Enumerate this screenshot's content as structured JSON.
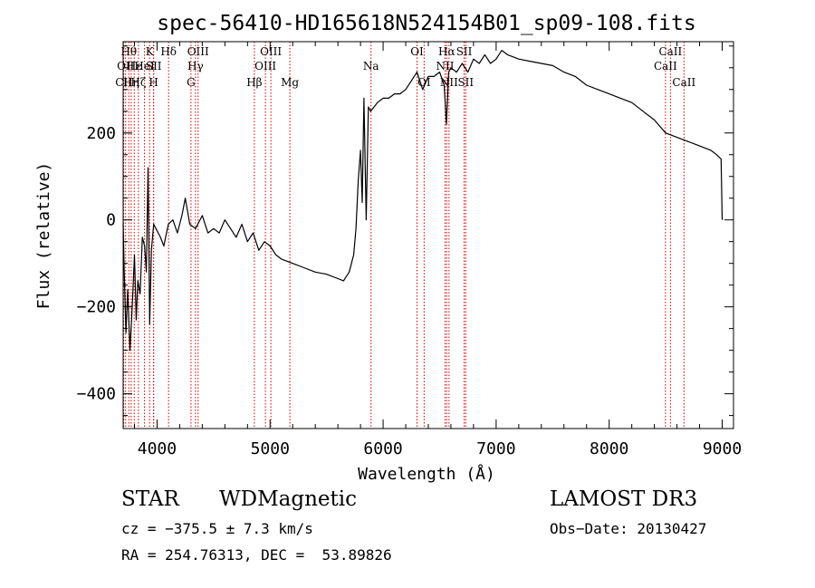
{
  "chart_data": {
    "type": "line",
    "title": "spec-56410-HD165618N524154B01_sp09-108.fits",
    "xlabel": "Wavelength (Å)",
    "ylabel": "Flux (relative)",
    "xlim": [
      3700,
      9100
    ],
    "ylim": [
      -480,
      410
    ],
    "x_ticks": [
      4000,
      5000,
      6000,
      7000,
      8000,
      9000
    ],
    "x_tick_labels": [
      "4000",
      "5000",
      "6000",
      "7000",
      "8000",
      "9000"
    ],
    "x_minor_step": 200,
    "y_ticks": [
      -400,
      -200,
      0,
      200
    ],
    "y_tick_labels": [
      "−400",
      "−200",
      "0",
      "200"
    ],
    "y_minor_step": 50,
    "grid": false,
    "series": [
      {
        "name": "flux",
        "x": [
          3700,
          3710,
          3725,
          3740,
          3760,
          3780,
          3800,
          3815,
          3830,
          3850,
          3870,
          3890,
          3905,
          3920,
          3935,
          3950,
          3970,
          3990,
          4010,
          4030,
          4060,
          4100,
          4140,
          4180,
          4220,
          4250,
          4290,
          4340,
          4400,
          4450,
          4500,
          4550,
          4600,
          4650,
          4700,
          4750,
          4800,
          4850,
          4900,
          4950,
          5000,
          5050,
          5100,
          5200,
          5300,
          5400,
          5500,
          5600,
          5650,
          5700,
          5740,
          5760,
          5780,
          5800,
          5815,
          5830,
          5850,
          5870,
          5890,
          5920,
          5950,
          6000,
          6050,
          6100,
          6150,
          6200,
          6250,
          6300,
          6350,
          6400,
          6450,
          6500,
          6540,
          6560,
          6580,
          6600,
          6650,
          6700,
          6750,
          6800,
          6850,
          6900,
          6950,
          7000,
          7050,
          7100,
          7200,
          7300,
          7400,
          7500,
          7600,
          7700,
          7800,
          7900,
          8000,
          8100,
          8200,
          8300,
          8400,
          8500,
          8600,
          8700,
          8800,
          8900,
          8950,
          8990,
          9000
        ],
        "y": [
          -10,
          -120,
          -260,
          -160,
          -300,
          -200,
          -80,
          -230,
          -140,
          -170,
          -40,
          -60,
          -120,
          120,
          -240,
          -70,
          -10,
          -20,
          -30,
          -40,
          -60,
          -10,
          0,
          -30,
          10,
          50,
          -10,
          -20,
          10,
          -30,
          -20,
          -30,
          0,
          -20,
          -40,
          -10,
          -50,
          -30,
          -70,
          -50,
          -60,
          -80,
          -90,
          -100,
          -110,
          -120,
          -125,
          -135,
          -140,
          -120,
          -80,
          -20,
          90,
          160,
          40,
          280,
          0,
          260,
          250,
          260,
          270,
          280,
          280,
          290,
          290,
          300,
          320,
          340,
          300,
          330,
          330,
          340,
          310,
          220,
          340,
          350,
          340,
          360,
          340,
          370,
          360,
          380,
          360,
          370,
          390,
          380,
          370,
          365,
          360,
          355,
          340,
          330,
          310,
          300,
          290,
          280,
          270,
          250,
          230,
          200,
          190,
          180,
          170,
          160,
          150,
          140,
          0
        ]
      }
    ],
    "line_markers": [
      {
        "x": 3705,
        "label": "CII",
        "row": 3
      },
      {
        "x": 3722,
        "label": "OII",
        "row": 2
      },
      {
        "x": 3750,
        "label": "Hθ",
        "row": 1
      },
      {
        "x": 3771,
        "label": "Hη",
        "row": 3
      },
      {
        "x": 3798,
        "label": "Hε",
        "row": 2
      },
      {
        "x": 3835,
        "label": "Hζ",
        "row": 3
      },
      {
        "x": 3889,
        "label": "HeI",
        "row": 2
      },
      {
        "x": 3934,
        "label": "K",
        "row": 1
      },
      {
        "x": 3969,
        "label": "H",
        "row": 3
      },
      {
        "x": 3970,
        "label": "SII",
        "row": 2
      },
      {
        "x": 4102,
        "label": "Hδ",
        "row": 1
      },
      {
        "x": 4300,
        "label": "G",
        "row": 3
      },
      {
        "x": 4340,
        "label": "Hγ",
        "row": 2
      },
      {
        "x": 4363,
        "label": "OIII",
        "row": 1
      },
      {
        "x": 4861,
        "label": "Hβ",
        "row": 3
      },
      {
        "x": 4959,
        "label": "OIII",
        "row": 2
      },
      {
        "x": 5007,
        "label": "OIII",
        "row": 1
      },
      {
        "x": 5175,
        "label": "Mg",
        "row": 3
      },
      {
        "x": 5893,
        "label": "Na",
        "row": 2
      },
      {
        "x": 6300,
        "label": "OI",
        "row": 1
      },
      {
        "x": 6363,
        "label": "OI",
        "row": 3
      },
      {
        "x": 6548,
        "label": "NII",
        "row": 2
      },
      {
        "x": 6563,
        "label": "Hα",
        "row": 1
      },
      {
        "x": 6583,
        "label": "NII",
        "row": 3
      },
      {
        "x": 6717,
        "label": "SII",
        "row": 1
      },
      {
        "x": 6731,
        "label": "SII",
        "row": 3
      },
      {
        "x": 8498,
        "label": "CaII",
        "row": 2
      },
      {
        "x": 8542,
        "label": "CaII",
        "row": 1
      },
      {
        "x": 8662,
        "label": "CaII",
        "row": 3
      }
    ],
    "colors": {
      "spectrum": "#000000",
      "marker_line": "#cc0000",
      "axes": "#000000"
    }
  },
  "info": {
    "object_class": "STAR",
    "subclass": "WDMagnetic",
    "survey": "LAMOST DR3",
    "cz_text": "cz = −375.5 ± 7.3 km/s",
    "obs_date_text": "Obs−Date: 20130427",
    "coords_text": "RA = 254.76313, DEC =  53.89826"
  }
}
